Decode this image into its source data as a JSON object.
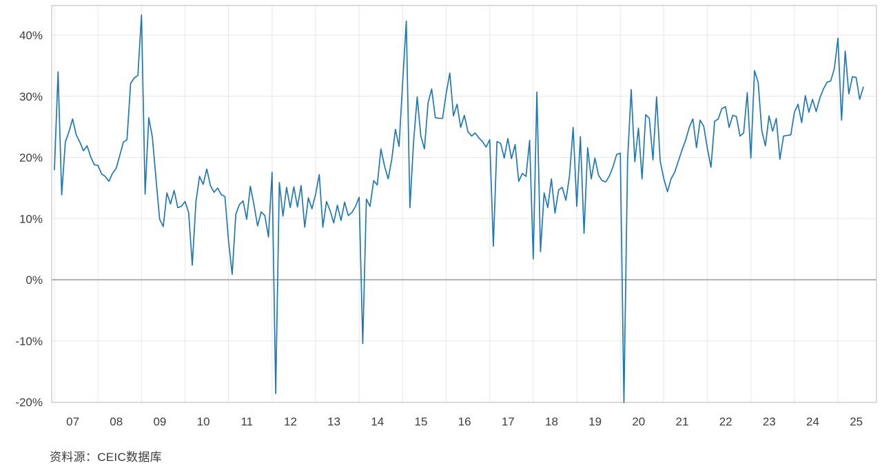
{
  "chart_data": {
    "type": "line",
    "title": "",
    "xlabel": "",
    "ylabel": "",
    "grid": true,
    "legend": "none",
    "line_color": "#1f77b4",
    "background_color": "#ffffff",
    "grid_color": "#e7e7e7",
    "zero_line_color": "#9a9a9a",
    "frame_color": "#c4c4c4",
    "y_axis": {
      "format": "percent",
      "tick_labels": [
        "40%",
        "30%",
        "20%",
        "10%",
        "0%",
        "-10%",
        "-20%"
      ],
      "tick_values": [
        40,
        30,
        20,
        10,
        0,
        -10,
        -20
      ],
      "range": [
        -20.1,
        44.8
      ]
    },
    "x_axis": {
      "unit": "year",
      "tick_labels": [
        "07",
        "08",
        "09",
        "10",
        "11",
        "12",
        "13",
        "14",
        "15",
        "16",
        "17",
        "18",
        "19",
        "20",
        "21",
        "22",
        "23",
        "24",
        "25"
      ]
    },
    "series": [
      {
        "start": "2007-01",
        "frequency": "monthly",
        "values": [
          18.0,
          34.0,
          13.9,
          22.5,
          24.2,
          26.3,
          23.7,
          22.5,
          21.1,
          21.9,
          20.1,
          18.8,
          18.7,
          17.3,
          16.9,
          16.1,
          17.4,
          18.2,
          20.3,
          22.5,
          22.9,
          32.1,
          33.0,
          33.4,
          43.3,
          14.0,
          26.5,
          23.3,
          16.5,
          9.9,
          8.7,
          14.2,
          12.4,
          14.6,
          11.8,
          12.0,
          12.8,
          11.0,
          2.4,
          12.7,
          16.9,
          15.6,
          18.1,
          15.4,
          14.3,
          15.0,
          13.9,
          13.6,
          6.3,
          0.9,
          10.7,
          12.3,
          12.9,
          9.9,
          15.3,
          12.3,
          8.8,
          11.1,
          10.5,
          7.0,
          17.6,
          -18.6,
          15.9,
          10.4,
          15.1,
          11.8,
          15.2,
          11.9,
          15.4,
          8.6,
          13.4,
          11.6,
          14.0,
          17.2,
          8.6,
          12.8,
          11.3,
          9.3,
          12.2,
          9.7,
          12.7,
          10.5,
          11.0,
          12.0,
          13.5,
          -10.4,
          13.2,
          12.0,
          16.2,
          15.5,
          21.4,
          18.6,
          16.5,
          19.7,
          24.6,
          21.8,
          32.3,
          42.3,
          11.8,
          22.5,
          29.9,
          23.5,
          21.4,
          28.9,
          31.2,
          26.5,
          26.4,
          26.4,
          30.5,
          33.8,
          26.8,
          28.7,
          24.9,
          26.9,
          24.2,
          23.5,
          24.0,
          23.2,
          22.6,
          21.7,
          22.9,
          5.5,
          22.6,
          22.3,
          19.9,
          23.1,
          19.8,
          22.1,
          16.1,
          17.4,
          16.9,
          22.8,
          3.4,
          30.7,
          4.6,
          14.2,
          11.8,
          16.5,
          10.9,
          14.7,
          15.1,
          13.0,
          17.0,
          24.9,
          12.0,
          23.4,
          7.6,
          21.6,
          16.5,
          19.9,
          17.1,
          16.2,
          16.0,
          17.0,
          18.5,
          20.5,
          20.7,
          -20.1,
          19.5,
          31.1,
          19.3,
          24.8,
          16.5,
          27.0,
          26.4,
          19.6,
          29.9,
          19.4,
          16.5,
          14.4,
          16.5,
          17.6,
          19.4,
          21.2,
          22.8,
          24.9,
          26.3,
          21.6,
          26.1,
          25.1,
          21.5,
          18.4,
          25.9,
          26.3,
          28.0,
          28.3,
          24.9,
          26.9,
          26.7,
          23.5,
          24.0,
          30.6,
          19.9,
          34.2,
          32.3,
          24.4,
          21.9,
          26.8,
          24.3,
          26.4,
          19.7,
          23.5,
          23.6,
          23.7,
          27.4,
          28.7,
          25.7,
          30.1,
          27.4,
          29.5,
          27.5,
          29.7,
          31.2,
          32.3,
          32.5,
          34.5,
          39.5,
          26.1,
          37.4,
          30.4,
          33.2,
          33.1,
          29.5,
          31.5
        ]
      }
    ]
  },
  "footer": {
    "source_text": "资料源：CEIC数据库"
  }
}
